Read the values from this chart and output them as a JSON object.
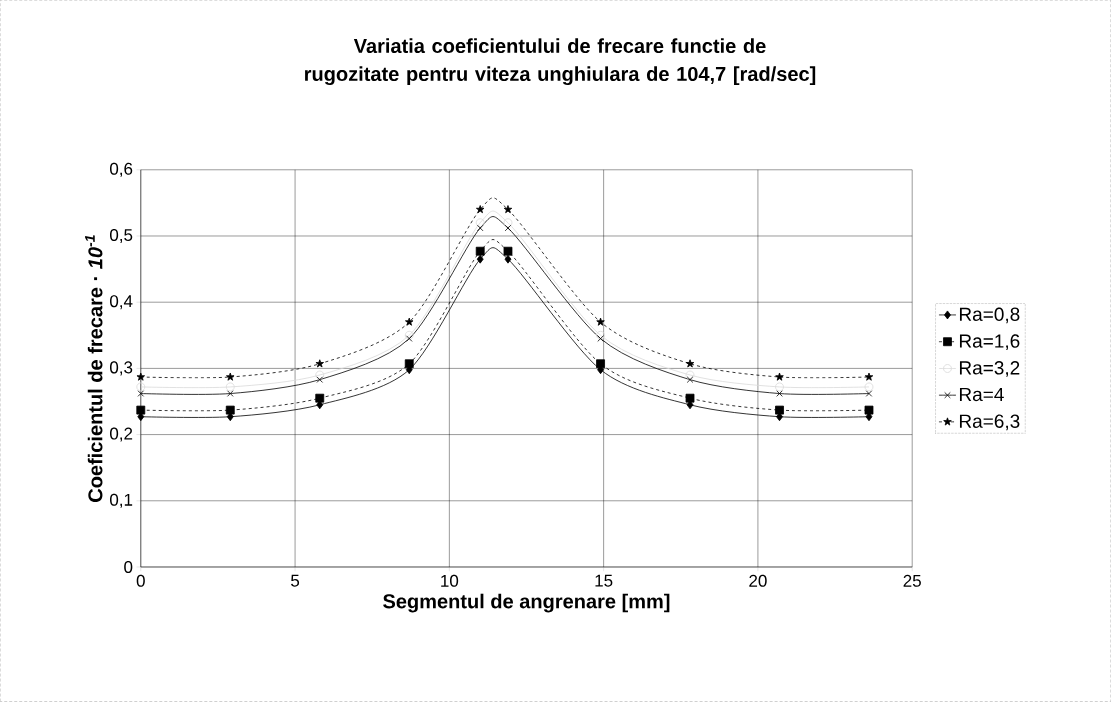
{
  "chart_data": {
    "type": "line",
    "title": "Variatia coeficientului de frecare functie de rugozitate pentru viteza unghiulara de 104,7 [rad/sec]",
    "xlabel": "Segmentul de angrenare [mm]",
    "ylabel": "Coeficientul de frecare · *10$^{-1}$*",
    "x": [
      0,
      2.9,
      5.8,
      8.7,
      11,
      11.9,
      14.9,
      17.8,
      20.7,
      23.6
    ],
    "series": [
      {
        "name": "Ra=0,8",
        "color": "#000000",
        "marker": "diamond",
        "line_style": "solid",
        "values": [
          0.227,
          0.227,
          0.245,
          0.298,
          0.465,
          0.465,
          0.298,
          0.245,
          0.227,
          0.227
        ]
      },
      {
        "name": "Ra=1,6",
        "color": "#000000",
        "marker": "square",
        "line_style": "dashed",
        "values": [
          0.237,
          0.237,
          0.255,
          0.307,
          0.477,
          0.477,
          0.307,
          0.255,
          0.237,
          0.237
        ]
      },
      {
        "name": "Ra=3,2",
        "color": "#d9d9d9",
        "marker": "circle",
        "line_style": "solid",
        "values": [
          0.272,
          0.272,
          0.29,
          0.35,
          0.52,
          0.52,
          0.35,
          0.29,
          0.272,
          0.272
        ]
      },
      {
        "name": "Ra=4",
        "color": "#000000",
        "marker": "cross",
        "line_style": "solid",
        "values": [
          0.262,
          0.262,
          0.283,
          0.345,
          0.512,
          0.512,
          0.345,
          0.283,
          0.262,
          0.262
        ]
      },
      {
        "name": "Ra=6,3",
        "color": "#000000",
        "marker": "star",
        "line_style": "dashed",
        "values": [
          0.287,
          0.287,
          0.307,
          0.37,
          0.54,
          0.54,
          0.37,
          0.307,
          0.287,
          0.287
        ]
      }
    ],
    "xlim": [
      0,
      25
    ],
    "xticks": [
      0,
      5,
      10,
      15,
      20,
      25
    ],
    "ylim": [
      0,
      0.6
    ],
    "yticks": [
      0,
      {
        "value": 0.1,
        "label": "0,1"
      },
      {
        "value": 0.2,
        "label": "0,2"
      },
      {
        "value": 0.3,
        "label": "0,3"
      },
      {
        "value": 0.4,
        "label": "0,4"
      },
      {
        "value": 0.5,
        "label": "0,5"
      },
      {
        "value": 0.6,
        "label": "0,6"
      }
    ],
    "grid": true,
    "legend": "right"
  }
}
